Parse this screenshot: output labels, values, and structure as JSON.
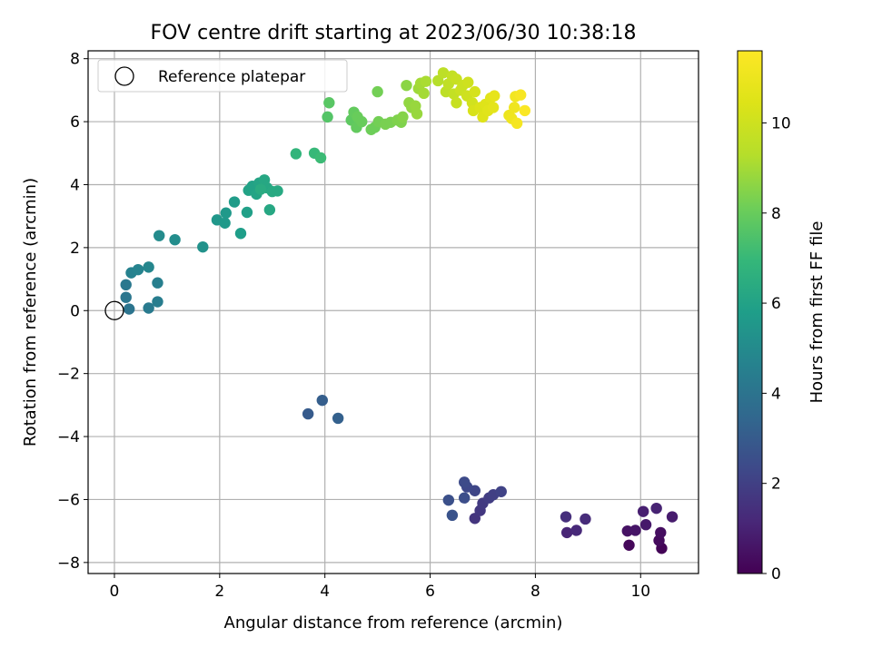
{
  "chart_data": {
    "type": "scatter",
    "title": "FOV centre drift starting at 2023/06/30 10:38:18",
    "xlabel": "Angular distance from reference (arcmin)",
    "ylabel": "Rotation from reference (arcmin)",
    "xlim": [
      -0.5,
      11.1
    ],
    "ylim": [
      -8.35,
      8.25
    ],
    "xticks": [
      0,
      2,
      4,
      6,
      8,
      10
    ],
    "yticks": [
      -8,
      -6,
      -4,
      -2,
      0,
      2,
      4,
      6,
      8
    ],
    "grid": true,
    "legend": {
      "position": "top-left",
      "entries": [
        "Reference platepar"
      ]
    },
    "reference_point": {
      "name": "Reference platepar",
      "x": 0,
      "y": 0
    },
    "colorbar": {
      "label": "Hours from first FF file",
      "colormap": "viridis",
      "range": [
        0,
        11.6
      ],
      "ticks": [
        0,
        2,
        4,
        6,
        8,
        10
      ]
    },
    "points": [
      {
        "x": 10.4,
        "y": -7.55,
        "t": 0.1
      },
      {
        "x": 9.78,
        "y": -7.45,
        "t": 0.2
      },
      {
        "x": 10.35,
        "y": -7.3,
        "t": 0.3
      },
      {
        "x": 10.38,
        "y": -7.05,
        "t": 0.4
      },
      {
        "x": 9.75,
        "y": -7.0,
        "t": 0.5
      },
      {
        "x": 9.9,
        "y": -6.98,
        "t": 0.6
      },
      {
        "x": 10.1,
        "y": -6.8,
        "t": 0.7
      },
      {
        "x": 10.6,
        "y": -6.55,
        "t": 0.8
      },
      {
        "x": 10.05,
        "y": -6.38,
        "t": 0.9
      },
      {
        "x": 10.3,
        "y": -6.28,
        "t": 1.0
      },
      {
        "x": 8.6,
        "y": -7.05,
        "t": 1.1
      },
      {
        "x": 8.78,
        "y": -6.98,
        "t": 1.2
      },
      {
        "x": 8.95,
        "y": -6.62,
        "t": 1.3
      },
      {
        "x": 8.58,
        "y": -6.55,
        "t": 1.4
      },
      {
        "x": 6.85,
        "y": -6.6,
        "t": 1.6
      },
      {
        "x": 6.95,
        "y": -6.35,
        "t": 1.7
      },
      {
        "x": 7.0,
        "y": -6.12,
        "t": 1.8
      },
      {
        "x": 7.12,
        "y": -5.95,
        "t": 1.9
      },
      {
        "x": 7.2,
        "y": -5.85,
        "t": 2.0
      },
      {
        "x": 7.35,
        "y": -5.75,
        "t": 2.1
      },
      {
        "x": 6.85,
        "y": -5.72,
        "t": 2.2
      },
      {
        "x": 6.7,
        "y": -5.6,
        "t": 2.3
      },
      {
        "x": 6.65,
        "y": -5.45,
        "t": 2.4
      },
      {
        "x": 6.65,
        "y": -5.95,
        "t": 2.5
      },
      {
        "x": 6.35,
        "y": -6.02,
        "t": 2.6
      },
      {
        "x": 6.42,
        "y": -6.5,
        "t": 2.7
      },
      {
        "x": 3.68,
        "y": -3.28,
        "t": 3.0
      },
      {
        "x": 3.95,
        "y": -2.85,
        "t": 3.1
      },
      {
        "x": 4.25,
        "y": -3.42,
        "t": 3.2
      },
      {
        "x": 0.28,
        "y": 0.05,
        "t": 4.0
      },
      {
        "x": 0.22,
        "y": 0.42,
        "t": 4.1
      },
      {
        "x": 0.22,
        "y": 0.82,
        "t": 4.2
      },
      {
        "x": 0.65,
        "y": 0.08,
        "t": 4.3
      },
      {
        "x": 0.82,
        "y": 0.28,
        "t": 4.4
      },
      {
        "x": 0.82,
        "y": 0.88,
        "t": 4.5
      },
      {
        "x": 0.32,
        "y": 1.2,
        "t": 4.6
      },
      {
        "x": 0.45,
        "y": 1.3,
        "t": 4.7
      },
      {
        "x": 0.65,
        "y": 1.38,
        "t": 4.8
      },
      {
        "x": 0.85,
        "y": 2.38,
        "t": 5.0
      },
      {
        "x": 1.15,
        "y": 2.25,
        "t": 5.1
      },
      {
        "x": 1.68,
        "y": 2.02,
        "t": 5.3
      },
      {
        "x": 1.95,
        "y": 2.88,
        "t": 5.5
      },
      {
        "x": 2.1,
        "y": 2.78,
        "t": 5.6
      },
      {
        "x": 2.12,
        "y": 3.1,
        "t": 5.6
      },
      {
        "x": 2.28,
        "y": 3.45,
        "t": 5.7
      },
      {
        "x": 2.4,
        "y": 2.45,
        "t": 5.8
      },
      {
        "x": 2.52,
        "y": 3.12,
        "t": 5.9
      },
      {
        "x": 2.55,
        "y": 3.82,
        "t": 6.0
      },
      {
        "x": 2.62,
        "y": 3.95,
        "t": 6.0
      },
      {
        "x": 2.7,
        "y": 3.7,
        "t": 6.1
      },
      {
        "x": 2.75,
        "y": 4.05,
        "t": 6.1
      },
      {
        "x": 2.85,
        "y": 4.15,
        "t": 6.2
      },
      {
        "x": 2.9,
        "y": 3.9,
        "t": 6.2
      },
      {
        "x": 2.95,
        "y": 3.2,
        "t": 6.2
      },
      {
        "x": 3.0,
        "y": 3.78,
        "t": 6.3
      },
      {
        "x": 3.1,
        "y": 3.8,
        "t": 6.3
      },
      {
        "x": 2.78,
        "y": 3.85,
        "t": 6.4
      },
      {
        "x": 3.45,
        "y": 4.98,
        "t": 6.8
      },
      {
        "x": 3.8,
        "y": 5.0,
        "t": 7.0
      },
      {
        "x": 3.92,
        "y": 4.85,
        "t": 7.1
      },
      {
        "x": 4.05,
        "y": 6.15,
        "t": 7.6
      },
      {
        "x": 4.08,
        "y": 6.6,
        "t": 7.7
      },
      {
        "x": 4.5,
        "y": 6.05,
        "t": 7.8
      },
      {
        "x": 4.55,
        "y": 6.3,
        "t": 7.9
      },
      {
        "x": 4.6,
        "y": 5.82,
        "t": 7.9
      },
      {
        "x": 4.62,
        "y": 6.15,
        "t": 8.0
      },
      {
        "x": 4.7,
        "y": 6.0,
        "t": 8.0
      },
      {
        "x": 4.88,
        "y": 5.75,
        "t": 8.1
      },
      {
        "x": 4.95,
        "y": 5.82,
        "t": 8.1
      },
      {
        "x": 5.0,
        "y": 6.95,
        "t": 8.2
      },
      {
        "x": 5.02,
        "y": 6.0,
        "t": 8.2
      },
      {
        "x": 5.15,
        "y": 5.92,
        "t": 8.3
      },
      {
        "x": 5.25,
        "y": 5.98,
        "t": 8.3
      },
      {
        "x": 5.38,
        "y": 6.05,
        "t": 8.4
      },
      {
        "x": 5.45,
        "y": 5.98,
        "t": 8.4
      },
      {
        "x": 5.48,
        "y": 6.15,
        "t": 8.5
      },
      {
        "x": 5.55,
        "y": 7.15,
        "t": 8.6
      },
      {
        "x": 5.6,
        "y": 6.6,
        "t": 8.7
      },
      {
        "x": 5.65,
        "y": 6.45,
        "t": 8.7
      },
      {
        "x": 5.72,
        "y": 6.5,
        "t": 8.8
      },
      {
        "x": 5.75,
        "y": 6.25,
        "t": 8.8
      },
      {
        "x": 5.78,
        "y": 7.05,
        "t": 8.9
      },
      {
        "x": 5.82,
        "y": 7.22,
        "t": 9.0
      },
      {
        "x": 5.88,
        "y": 6.9,
        "t": 9.0
      },
      {
        "x": 5.92,
        "y": 7.28,
        "t": 9.1
      },
      {
        "x": 6.15,
        "y": 7.3,
        "t": 9.3
      },
      {
        "x": 6.25,
        "y": 7.55,
        "t": 9.5
      },
      {
        "x": 6.3,
        "y": 6.95,
        "t": 9.5
      },
      {
        "x": 6.35,
        "y": 7.2,
        "t": 9.6
      },
      {
        "x": 6.42,
        "y": 7.45,
        "t": 9.7
      },
      {
        "x": 6.45,
        "y": 6.88,
        "t": 9.7
      },
      {
        "x": 6.5,
        "y": 7.35,
        "t": 9.8
      },
      {
        "x": 6.5,
        "y": 6.6,
        "t": 9.8
      },
      {
        "x": 6.58,
        "y": 7.0,
        "t": 9.9
      },
      {
        "x": 6.62,
        "y": 7.15,
        "t": 9.9
      },
      {
        "x": 6.7,
        "y": 6.82,
        "t": 10.0
      },
      {
        "x": 6.72,
        "y": 7.25,
        "t": 10.0
      },
      {
        "x": 6.8,
        "y": 6.6,
        "t": 10.1
      },
      {
        "x": 6.85,
        "y": 6.95,
        "t": 10.2
      },
      {
        "x": 6.82,
        "y": 6.35,
        "t": 10.3
      },
      {
        "x": 6.95,
        "y": 6.45,
        "t": 10.4
      },
      {
        "x": 7.0,
        "y": 6.15,
        "t": 10.5
      },
      {
        "x": 7.05,
        "y": 6.55,
        "t": 10.5
      },
      {
        "x": 7.1,
        "y": 6.35,
        "t": 10.6
      },
      {
        "x": 7.15,
        "y": 6.75,
        "t": 10.6
      },
      {
        "x": 7.2,
        "y": 6.45,
        "t": 10.7
      },
      {
        "x": 7.22,
        "y": 6.82,
        "t": 10.8
      },
      {
        "x": 7.5,
        "y": 6.2,
        "t": 11.0
      },
      {
        "x": 7.55,
        "y": 6.1,
        "t": 11.1
      },
      {
        "x": 7.6,
        "y": 6.45,
        "t": 11.1
      },
      {
        "x": 7.62,
        "y": 6.8,
        "t": 11.2
      },
      {
        "x": 7.65,
        "y": 5.95,
        "t": 11.3
      },
      {
        "x": 7.72,
        "y": 6.85,
        "t": 11.4
      },
      {
        "x": 7.8,
        "y": 6.35,
        "t": 11.5
      }
    ]
  }
}
